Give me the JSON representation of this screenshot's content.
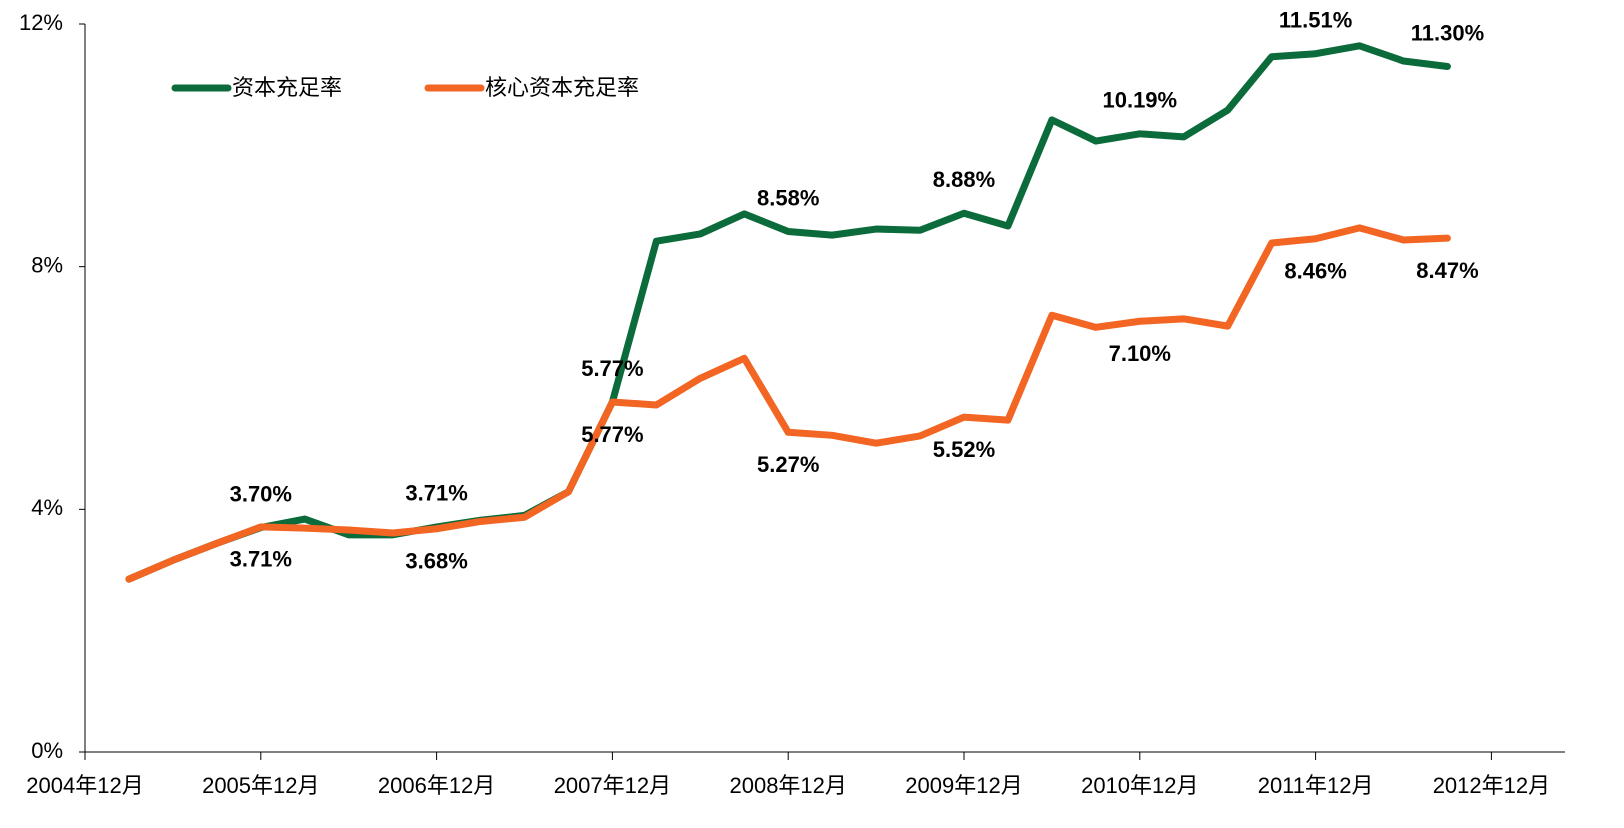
{
  "chart_data": {
    "type": "line",
    "categories": [
      "2004年12月",
      null,
      null,
      null,
      "2005年12月",
      null,
      null,
      null,
      "2006年12月",
      null,
      null,
      null,
      "2007年12月",
      null,
      null,
      null,
      "2008年12月",
      null,
      null,
      null,
      "2009年12月",
      null,
      null,
      null,
      "2010年12月",
      null,
      null,
      null,
      "2011年12月",
      null,
      null,
      null,
      "2012年12月"
    ],
    "series": [
      {
        "name": "资本充足率",
        "color": "#0b6b3a",
        "values": [
          null,
          2.85,
          3.16,
          3.44,
          3.7,
          3.84,
          3.58,
          3.58,
          3.71,
          3.82,
          3.9,
          4.29,
          5.77,
          8.42,
          8.54,
          8.87,
          8.58,
          8.52,
          8.62,
          8.6,
          8.88,
          8.67,
          10.42,
          10.07,
          10.19,
          10.14,
          10.58,
          11.46,
          11.51,
          11.64,
          11.39,
          11.3,
          null
        ],
        "value_labels": [
          null,
          null,
          null,
          null,
          "3.70%",
          null,
          null,
          null,
          "3.71%",
          null,
          null,
          null,
          "5.77%",
          null,
          null,
          null,
          "8.58%",
          null,
          null,
          null,
          "8.88%",
          null,
          null,
          null,
          "10.19%",
          null,
          null,
          null,
          "11.51%",
          null,
          null,
          "11.30%",
          null
        ]
      },
      {
        "name": "核心资本充足率",
        "color": "#f26522",
        "values": [
          null,
          2.85,
          3.16,
          3.44,
          3.71,
          3.69,
          3.66,
          3.61,
          3.68,
          3.8,
          3.87,
          4.29,
          5.77,
          5.72,
          6.16,
          6.49,
          5.27,
          5.22,
          5.09,
          5.21,
          5.52,
          5.47,
          7.2,
          7.0,
          7.1,
          7.14,
          7.02,
          8.39,
          8.46,
          8.64,
          8.44,
          8.47,
          null
        ],
        "value_labels": [
          null,
          null,
          null,
          null,
          "3.71%",
          null,
          null,
          null,
          "3.68%",
          null,
          null,
          null,
          "5.77%",
          null,
          null,
          null,
          "5.27%",
          null,
          null,
          null,
          "5.52%",
          null,
          null,
          null,
          "7.10%",
          null,
          null,
          null,
          "8.46%",
          null,
          null,
          "8.47%",
          null
        ]
      }
    ],
    "ylim": [
      0,
      12
    ],
    "yticks": [
      {
        "value": 0,
        "label": "0%"
      },
      {
        "value": 4,
        "label": "4%"
      },
      {
        "value": 8,
        "label": "8%"
      },
      {
        "value": 12,
        "label": "12%"
      }
    ],
    "grid": false,
    "legend": "top-left"
  }
}
